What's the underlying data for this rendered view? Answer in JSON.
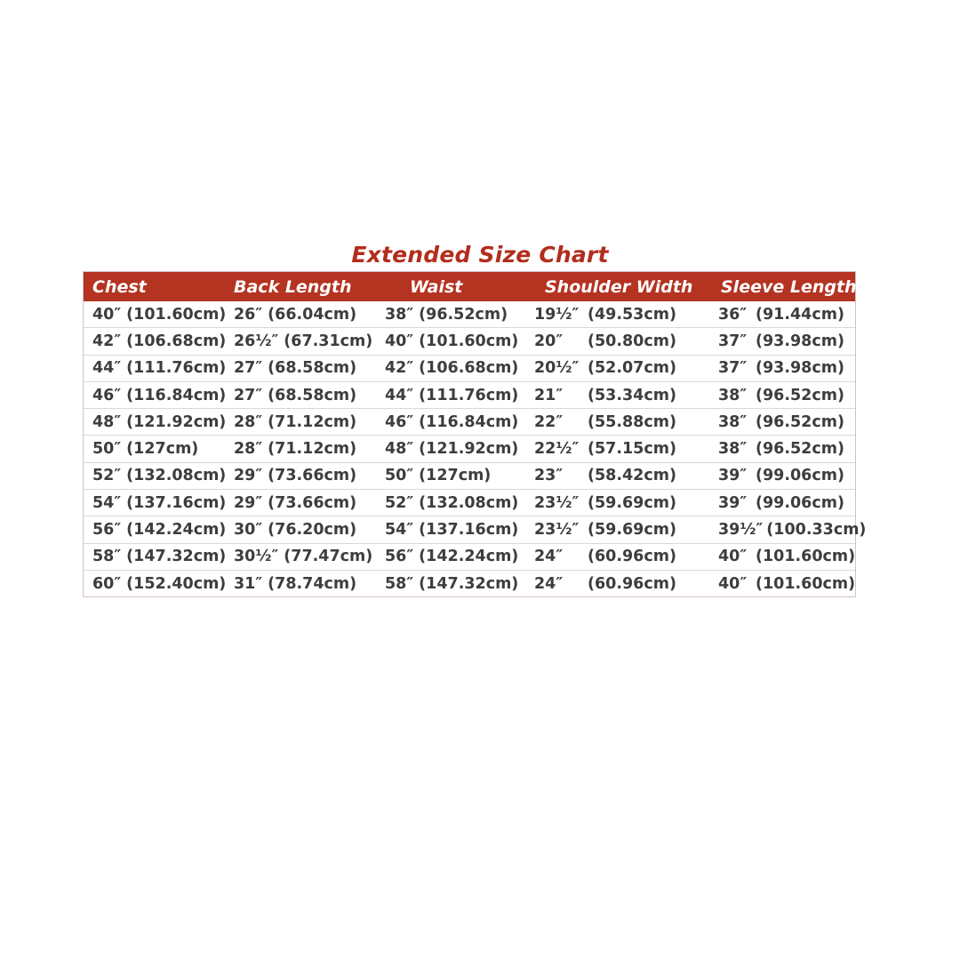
{
  "title": "Extended Size Chart",
  "colors": {
    "accent_red": "#b22d1c",
    "header_band": "#b43321",
    "body_text": "#3d3d3d",
    "row_divider": "#d9d9d9"
  },
  "table": {
    "columns": [
      "Chest",
      "Back Length",
      "Waist",
      "Shoulder Width",
      "Sleeve Length"
    ],
    "rows": [
      [
        {
          "in": "40″",
          "cm": "(101.60cm)"
        },
        {
          "in": "26″",
          "cm": "(66.04cm)"
        },
        {
          "in": "38″",
          "cm": "(96.52cm)"
        },
        {
          "in": "19½″",
          "cm": "(49.53cm)"
        },
        {
          "in": "36″",
          "cm": "(91.44cm)"
        }
      ],
      [
        {
          "in": "42″",
          "cm": "(106.68cm)"
        },
        {
          "in": "26½″",
          "cm": "(67.31cm)"
        },
        {
          "in": "40″",
          "cm": "(101.60cm)"
        },
        {
          "in": "20″",
          "cm": "(50.80cm)"
        },
        {
          "in": "37″",
          "cm": "(93.98cm)"
        }
      ],
      [
        {
          "in": "44″",
          "cm": "(111.76cm)"
        },
        {
          "in": "27″",
          "cm": "(68.58cm)"
        },
        {
          "in": "42″",
          "cm": "(106.68cm)"
        },
        {
          "in": "20½″",
          "cm": "(52.07cm)"
        },
        {
          "in": "37″",
          "cm": "(93.98cm)"
        }
      ],
      [
        {
          "in": "46″",
          "cm": "(116.84cm)"
        },
        {
          "in": "27″",
          "cm": "(68.58cm)"
        },
        {
          "in": "44″",
          "cm": "(111.76cm)"
        },
        {
          "in": "21″",
          "cm": "(53.34cm)"
        },
        {
          "in": "38″",
          "cm": "(96.52cm)"
        }
      ],
      [
        {
          "in": "48″",
          "cm": "(121.92cm)"
        },
        {
          "in": "28″",
          "cm": "(71.12cm)"
        },
        {
          "in": "46″",
          "cm": "(116.84cm)"
        },
        {
          "in": "22″",
          "cm": "(55.88cm)"
        },
        {
          "in": "38″",
          "cm": "(96.52cm)"
        }
      ],
      [
        {
          "in": "50″",
          "cm": "(127cm)"
        },
        {
          "in": "28″",
          "cm": "(71.12cm)"
        },
        {
          "in": "48″",
          "cm": "(121.92cm)"
        },
        {
          "in": "22½″",
          "cm": "(57.15cm)"
        },
        {
          "in": "38″",
          "cm": "(96.52cm)"
        }
      ],
      [
        {
          "in": "52″",
          "cm": "(132.08cm)"
        },
        {
          "in": "29″",
          "cm": "(73.66cm)"
        },
        {
          "in": "50″",
          "cm": "(127cm)"
        },
        {
          "in": "23″",
          "cm": "(58.42cm)"
        },
        {
          "in": "39″",
          "cm": "(99.06cm)"
        }
      ],
      [
        {
          "in": "54″",
          "cm": "(137.16cm)"
        },
        {
          "in": "29″",
          "cm": "(73.66cm)"
        },
        {
          "in": "52″",
          "cm": "(132.08cm)"
        },
        {
          "in": "23½″",
          "cm": "(59.69cm)"
        },
        {
          "in": "39″",
          "cm": "(99.06cm)"
        }
      ],
      [
        {
          "in": "56″",
          "cm": "(142.24cm)"
        },
        {
          "in": "30″",
          "cm": "(76.20cm)"
        },
        {
          "in": "54″",
          "cm": "(137.16cm)"
        },
        {
          "in": "23½″",
          "cm": "(59.69cm)"
        },
        {
          "in": "39½″",
          "cm": "(100.33cm)"
        }
      ],
      [
        {
          "in": "58″",
          "cm": "(147.32cm)"
        },
        {
          "in": "30½″",
          "cm": "(77.47cm)"
        },
        {
          "in": "56″",
          "cm": "(142.24cm)"
        },
        {
          "in": "24″",
          "cm": "(60.96cm)"
        },
        {
          "in": "40″",
          "cm": "(101.60cm)"
        }
      ],
      [
        {
          "in": "60″",
          "cm": "(152.40cm)"
        },
        {
          "in": "31″",
          "cm": "(78.74cm)"
        },
        {
          "in": "58″",
          "cm": "(147.32cm)"
        },
        {
          "in": "24″",
          "cm": "(60.96cm)"
        },
        {
          "in": "40″",
          "cm": "(101.60cm)"
        }
      ]
    ]
  }
}
